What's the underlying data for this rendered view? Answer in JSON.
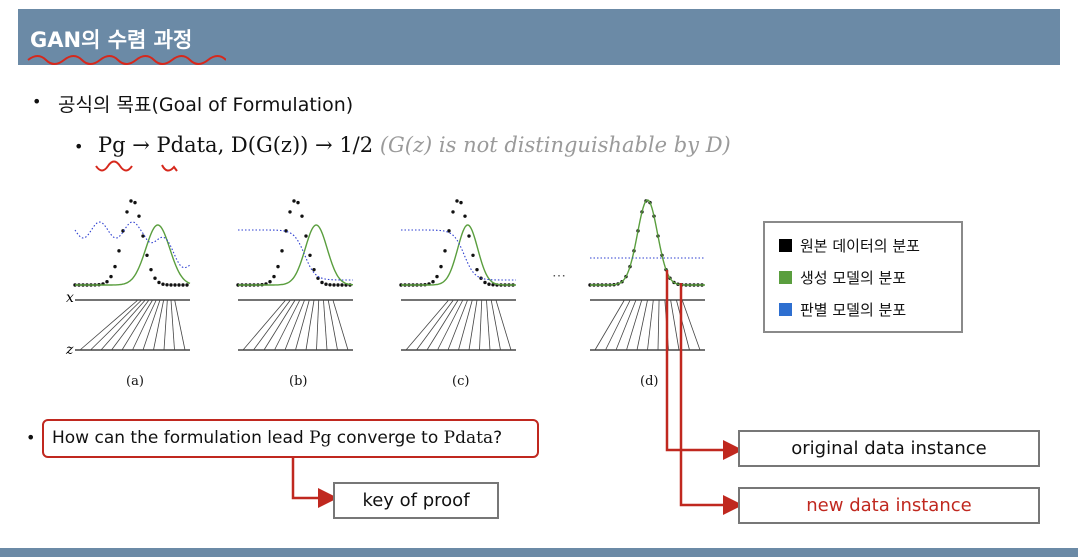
{
  "slide": {
    "title": "GAN의 수렴 과정",
    "bullet1": "공식의 목표(Goal of Formulation)",
    "formula": {
      "main": "Pg → Pdata, D(G(z)) → 1/2",
      "note": "(G(z) is not distinguishable by D)"
    },
    "question_prefix": "How can the formulation lead ",
    "question_pg": "Pg",
    "question_mid": " converge to ",
    "question_pdata": "Pdata",
    "question_suffix": "?",
    "key_of_proof": "key of proof",
    "original_instance": "original data instance",
    "new_instance": "new data instance"
  },
  "figure": {
    "panel_labels": [
      "(a)",
      "(b)",
      "(c)",
      "(d)"
    ],
    "axis_x": "x",
    "axis_z": "z",
    "ellipsis": "⋯"
  },
  "legend": {
    "items": [
      {
        "label": "원본 데이터의 분포",
        "color": "#000000"
      },
      {
        "label": "생성 모델의 분포",
        "color": "#5a9e3e"
      },
      {
        "label": "판별 모델의 분포",
        "color": "#2e6fd0"
      }
    ]
  },
  "colors": {
    "title_bar": "#6b8aa6",
    "accent_red": "#c0281f",
    "box_border": "#777777"
  }
}
